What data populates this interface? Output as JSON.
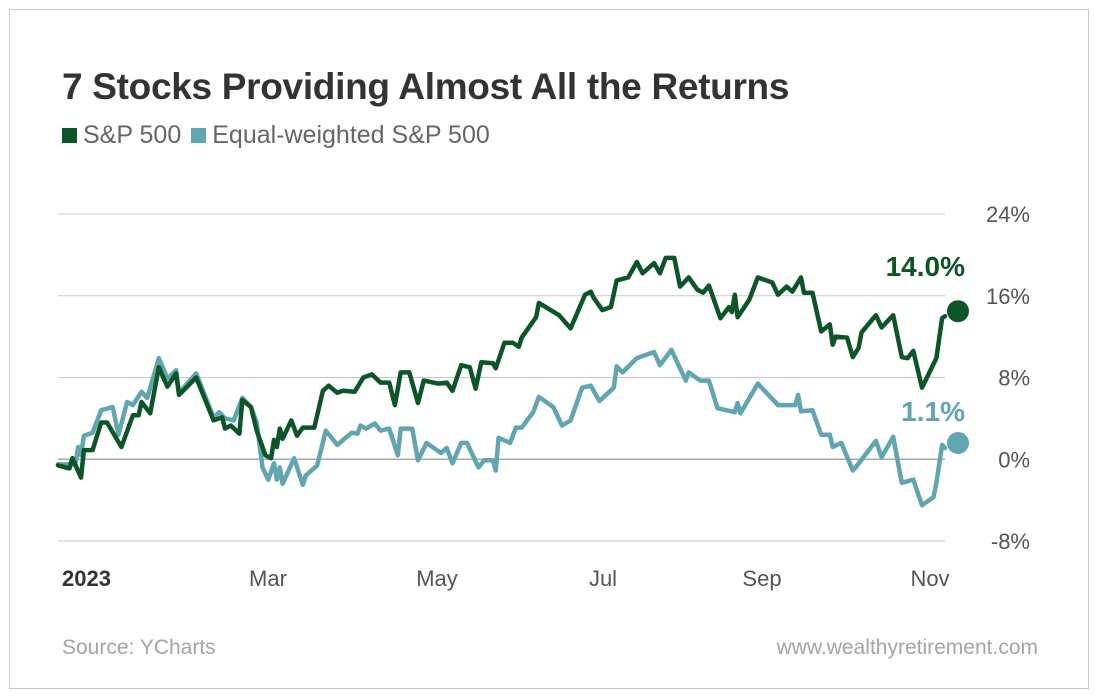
{
  "title": "7 Stocks Providing Almost All the Returns",
  "source": "Source: YCharts",
  "website": "www.wealthyretirement.com",
  "colors": {
    "sp500": "#0b5527",
    "equal": "#5fa6b0",
    "grid": "#c8c8c8",
    "zero": "#a8a8a8"
  },
  "chart_data": {
    "type": "line",
    "title": "7 Stocks Providing Almost All the Returns",
    "xlabel": "",
    "ylabel": "",
    "x_range": [
      "2023-01-03",
      "2023-11-07"
    ],
    "ylim": [
      -8,
      24
    ],
    "y_ticks": [
      24,
      16,
      8,
      0,
      -8
    ],
    "y_tick_labels": [
      "24%",
      "16%",
      "8%",
      "0%",
      "-8%"
    ],
    "x_tick_labels": [
      "2023",
      "Mar",
      "May",
      "Jul",
      "Sep",
      "Nov"
    ],
    "grid": true,
    "legend": "top-left",
    "series": [
      {
        "name": "S&P 500",
        "color": "#0b5527",
        "end_label": "14.0%",
        "points": [
          [
            "2023-01-03",
            -0.6
          ],
          [
            "2023-01-07",
            -0.9
          ],
          [
            "2023-01-08",
            0.1
          ],
          [
            "2023-01-11",
            -1.8
          ],
          [
            "2023-01-12",
            0.9
          ],
          [
            "2023-01-15",
            0.9
          ],
          [
            "2023-01-18",
            3.6
          ],
          [
            "2023-01-20",
            3.6
          ],
          [
            "2023-01-25",
            1.2
          ],
          [
            "2023-01-29",
            4.3
          ],
          [
            "2023-01-31",
            4.3
          ],
          [
            "2023-02-01",
            5.6
          ],
          [
            "2023-02-04",
            4.5
          ],
          [
            "2023-02-07",
            9.0
          ],
          [
            "2023-02-10",
            7.1
          ],
          [
            "2023-02-13",
            8.4
          ],
          [
            "2023-02-14",
            6.3
          ],
          [
            "2023-02-20",
            8.0
          ],
          [
            "2023-02-26",
            3.8
          ],
          [
            "2023-03-01",
            4.1
          ],
          [
            "2023-03-02",
            3.0
          ],
          [
            "2023-03-04",
            3.3
          ],
          [
            "2023-03-07",
            2.5
          ],
          [
            "2023-03-08",
            5.8
          ],
          [
            "2023-03-11",
            5.1
          ],
          [
            "2023-03-13",
            2.8
          ],
          [
            "2023-03-16",
            0.4
          ],
          [
            "2023-03-18",
            0.1
          ],
          [
            "2023-03-19",
            1.9
          ],
          [
            "2023-03-20",
            1.2
          ],
          [
            "2023-03-21",
            3.0
          ],
          [
            "2023-03-22",
            2.0
          ],
          [
            "2023-03-25",
            3.8
          ],
          [
            "2023-03-27",
            2.3
          ],
          [
            "2023-03-29",
            3.1
          ],
          [
            "2023-04-02",
            3.1
          ],
          [
            "2023-04-05",
            6.7
          ],
          [
            "2023-04-07",
            7.2
          ],
          [
            "2023-04-10",
            6.5
          ],
          [
            "2023-04-12",
            6.7
          ],
          [
            "2023-04-16",
            6.6
          ],
          [
            "2023-04-19",
            8.0
          ],
          [
            "2023-04-22",
            8.3
          ],
          [
            "2023-04-25",
            7.5
          ],
          [
            "2023-04-28",
            7.5
          ],
          [
            "2023-04-30",
            5.3
          ],
          [
            "2023-05-02",
            8.5
          ],
          [
            "2023-05-05",
            8.5
          ],
          [
            "2023-05-08",
            5.5
          ],
          [
            "2023-05-10",
            7.7
          ],
          [
            "2023-05-15",
            7.4
          ],
          [
            "2023-05-18",
            7.5
          ],
          [
            "2023-05-20",
            6.7
          ],
          [
            "2023-05-23",
            9.2
          ],
          [
            "2023-05-26",
            9.0
          ],
          [
            "2023-05-28",
            6.9
          ],
          [
            "2023-05-30",
            9.5
          ],
          [
            "2023-06-03",
            9.4
          ],
          [
            "2023-06-04",
            8.9
          ],
          [
            "2023-06-07",
            11.4
          ],
          [
            "2023-06-10",
            11.4
          ],
          [
            "2023-06-12",
            11.0
          ],
          [
            "2023-06-13",
            11.9
          ],
          [
            "2023-06-18",
            13.9
          ],
          [
            "2023-06-19",
            15.3
          ],
          [
            "2023-06-26",
            14.1
          ],
          [
            "2023-06-30",
            12.8
          ],
          [
            "2023-07-05",
            16.1
          ],
          [
            "2023-07-07",
            16.4
          ],
          [
            "2023-07-08",
            15.8
          ],
          [
            "2023-07-11",
            14.6
          ],
          [
            "2023-07-14",
            14.9
          ],
          [
            "2023-07-16",
            17.5
          ],
          [
            "2023-07-20",
            17.8
          ],
          [
            "2023-07-23",
            19.3
          ],
          [
            "2023-07-25",
            18.2
          ],
          [
            "2023-07-29",
            19.2
          ],
          [
            "2023-07-31",
            18.2
          ],
          [
            "2023-08-02",
            19.7
          ],
          [
            "2023-08-05",
            19.7
          ],
          [
            "2023-08-07",
            16.9
          ],
          [
            "2023-08-10",
            17.8
          ],
          [
            "2023-08-13",
            16.6
          ],
          [
            "2023-08-15",
            16.3
          ],
          [
            "2023-08-17",
            17.0
          ],
          [
            "2023-08-21",
            13.8
          ],
          [
            "2023-08-24",
            14.9
          ],
          [
            "2023-08-25",
            14.4
          ],
          [
            "2023-08-26",
            16.1
          ],
          [
            "2023-08-27",
            13.9
          ],
          [
            "2023-08-31",
            15.6
          ],
          [
            "2023-09-03",
            17.8
          ],
          [
            "2023-09-08",
            17.3
          ],
          [
            "2023-09-10",
            16.1
          ],
          [
            "2023-09-13",
            16.9
          ],
          [
            "2023-09-15",
            16.4
          ],
          [
            "2023-09-18",
            17.8
          ],
          [
            "2023-09-19",
            16.3
          ],
          [
            "2023-09-22",
            16.3
          ],
          [
            "2023-09-25",
            12.5
          ],
          [
            "2023-09-28",
            13.2
          ],
          [
            "2023-09-29",
            11.2
          ],
          [
            "2023-09-30",
            12.0
          ],
          [
            "2023-10-04",
            11.9
          ],
          [
            "2023-10-06",
            10.0
          ],
          [
            "2023-10-08",
            10.9
          ],
          [
            "2023-10-09",
            12.4
          ],
          [
            "2023-10-14",
            14.1
          ],
          [
            "2023-10-16",
            12.9
          ],
          [
            "2023-10-20",
            14.1
          ],
          [
            "2023-10-23",
            10.0
          ],
          [
            "2023-10-25",
            9.9
          ],
          [
            "2023-10-27",
            10.6
          ],
          [
            "2023-10-30",
            7.0
          ],
          [
            "2023-11-04",
            9.9
          ],
          [
            "2023-11-06",
            13.8
          ],
          [
            "2023-11-07",
            14.0
          ]
        ]
      },
      {
        "name": "Equal-weighted S&P 500",
        "color": "#5fa6b0",
        "end_label": "1.1%",
        "points": [
          [
            "2023-01-03",
            -0.5
          ],
          [
            "2023-01-09",
            -0.5
          ],
          [
            "2023-01-10",
            1.2
          ],
          [
            "2023-01-11",
            0.4
          ],
          [
            "2023-01-12",
            2.3
          ],
          [
            "2023-01-15",
            2.6
          ],
          [
            "2023-01-18",
            4.8
          ],
          [
            "2023-01-22",
            5.1
          ],
          [
            "2023-01-24",
            2.4
          ],
          [
            "2023-01-27",
            5.6
          ],
          [
            "2023-01-29",
            5.3
          ],
          [
            "2023-02-01",
            6.6
          ],
          [
            "2023-02-03",
            6.0
          ],
          [
            "2023-02-07",
            9.9
          ],
          [
            "2023-02-10",
            7.9
          ],
          [
            "2023-02-13",
            8.7
          ],
          [
            "2023-02-14",
            6.5
          ],
          [
            "2023-02-20",
            8.4
          ],
          [
            "2023-02-26",
            4.1
          ],
          [
            "2023-02-28",
            4.6
          ],
          [
            "2023-03-02",
            4.0
          ],
          [
            "2023-03-05",
            3.8
          ],
          [
            "2023-03-08",
            6.0
          ],
          [
            "2023-03-11",
            5.1
          ],
          [
            "2023-03-13",
            3.6
          ],
          [
            "2023-03-15",
            -0.8
          ],
          [
            "2023-03-17",
            -2.0
          ],
          [
            "2023-03-19",
            -0.4
          ],
          [
            "2023-03-20",
            -2.0
          ],
          [
            "2023-03-21",
            -0.8
          ],
          [
            "2023-03-22",
            -2.4
          ],
          [
            "2023-03-26",
            0.1
          ],
          [
            "2023-03-29",
            -2.5
          ],
          [
            "2023-03-30",
            -1.6
          ],
          [
            "2023-04-03",
            -0.6
          ],
          [
            "2023-04-06",
            2.8
          ],
          [
            "2023-04-10",
            1.4
          ],
          [
            "2023-04-15",
            2.6
          ],
          [
            "2023-04-17",
            2.5
          ],
          [
            "2023-04-18",
            3.3
          ],
          [
            "2023-04-20",
            3.0
          ],
          [
            "2023-04-23",
            3.5
          ],
          [
            "2023-04-25",
            2.8
          ],
          [
            "2023-04-28",
            3.0
          ],
          [
            "2023-05-01",
            0.4
          ],
          [
            "2023-05-02",
            3.0
          ],
          [
            "2023-05-06",
            3.0
          ],
          [
            "2023-05-08",
            -0.1
          ],
          [
            "2023-05-11",
            1.6
          ],
          [
            "2023-05-16",
            0.6
          ],
          [
            "2023-05-18",
            1.1
          ],
          [
            "2023-05-20",
            -0.4
          ],
          [
            "2023-05-23",
            1.6
          ],
          [
            "2023-05-25",
            1.6
          ],
          [
            "2023-05-29",
            -0.8
          ],
          [
            "2023-05-31",
            -0.1
          ],
          [
            "2023-06-03",
            -0.1
          ],
          [
            "2023-06-04",
            -1.1
          ],
          [
            "2023-06-05",
            2.1
          ],
          [
            "2023-06-09",
            1.6
          ],
          [
            "2023-06-11",
            3.1
          ],
          [
            "2023-06-13",
            3.1
          ],
          [
            "2023-06-17",
            4.6
          ],
          [
            "2023-06-19",
            6.1
          ],
          [
            "2023-06-24",
            5.1
          ],
          [
            "2023-06-27",
            3.3
          ],
          [
            "2023-06-30",
            3.8
          ],
          [
            "2023-07-04",
            7.0
          ],
          [
            "2023-07-07",
            7.2
          ],
          [
            "2023-07-10",
            5.7
          ],
          [
            "2023-07-15",
            7.0
          ],
          [
            "2023-07-16",
            9.1
          ],
          [
            "2023-07-18",
            8.5
          ],
          [
            "2023-07-23",
            9.9
          ],
          [
            "2023-07-29",
            10.5
          ],
          [
            "2023-07-31",
            9.2
          ],
          [
            "2023-08-04",
            10.7
          ],
          [
            "2023-08-09",
            7.7
          ],
          [
            "2023-08-10",
            8.5
          ],
          [
            "2023-08-14",
            7.7
          ],
          [
            "2023-08-17",
            7.7
          ],
          [
            "2023-08-20",
            5.0
          ],
          [
            "2023-08-26",
            4.6
          ],
          [
            "2023-08-27",
            5.5
          ],
          [
            "2023-08-28",
            4.5
          ],
          [
            "2023-09-03",
            7.4
          ],
          [
            "2023-09-10",
            5.3
          ],
          [
            "2023-09-16",
            5.3
          ],
          [
            "2023-09-17",
            6.3
          ],
          [
            "2023-09-18",
            4.7
          ],
          [
            "2023-09-22",
            4.8
          ],
          [
            "2023-09-25",
            2.4
          ],
          [
            "2023-09-28",
            2.4
          ],
          [
            "2023-09-29",
            1.2
          ],
          [
            "2023-10-02",
            1.6
          ],
          [
            "2023-10-06",
            -1.1
          ],
          [
            "2023-10-07",
            -0.8
          ],
          [
            "2023-10-14",
            1.8
          ],
          [
            "2023-10-16",
            0.2
          ],
          [
            "2023-10-20",
            2.2
          ],
          [
            "2023-10-23",
            -2.3
          ],
          [
            "2023-10-27",
            -2.0
          ],
          [
            "2023-10-30",
            -4.5
          ],
          [
            "2023-11-03",
            -3.7
          ],
          [
            "2023-11-04",
            -2.3
          ],
          [
            "2023-11-06",
            1.4
          ],
          [
            "2023-11-07",
            1.1
          ]
        ]
      }
    ]
  }
}
